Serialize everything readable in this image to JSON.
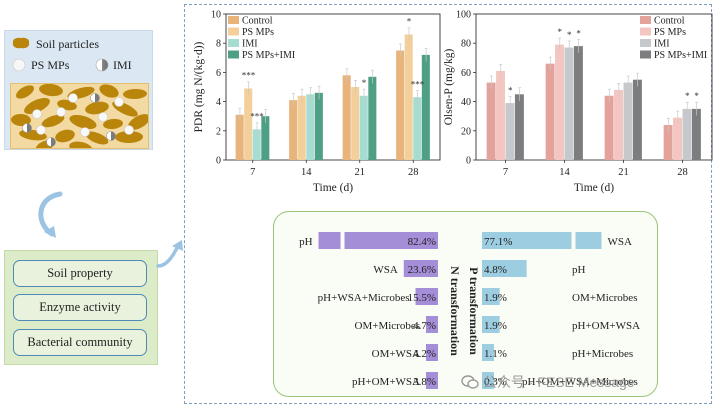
{
  "legend": {
    "soil_particles": "Soil particles",
    "ps_mps": "PS MPs",
    "imi": "IMI"
  },
  "factors": [
    "Soil property",
    "Enzyme activity",
    "Bacterial community"
  ],
  "colors": {
    "control_left": "#e8b47c",
    "ps_left": "#f3cf9c",
    "imi_left": "#a7ddd1",
    "psimi_left": "#4f9f86",
    "control_right": "#e3a29c",
    "ps_right": "#f3c6c1",
    "imi_right": "#c6c9cc",
    "psimi_right": "#7b7d7f",
    "n_bar": "#a58ed8",
    "p_bar": "#9dcde0"
  },
  "chart_data": [
    {
      "type": "bar",
      "ylabel": "PDR (mg N/(kg·d))",
      "xlabel": "Time (d)",
      "categories": [
        "7",
        "14",
        "21",
        "28"
      ],
      "ylim": [
        0,
        10
      ],
      "yticks": [
        "0",
        "2",
        "4",
        "6",
        "8",
        "10"
      ],
      "legend_position": "top-left",
      "series": [
        {
          "name": "Control",
          "values": [
            3.1,
            4.1,
            5.8,
            7.5
          ]
        },
        {
          "name": "PS MPs",
          "values": [
            4.9,
            4.4,
            5.0,
            8.6
          ]
        },
        {
          "name": "IMI",
          "values": [
            2.1,
            4.5,
            4.4,
            4.3
          ]
        },
        {
          "name": "PS MPs+IMI",
          "values": [
            3.0,
            4.6,
            5.7,
            7.2
          ]
        }
      ],
      "annotations": [
        {
          "category": "7",
          "series": "PS MPs",
          "text": "***"
        },
        {
          "category": "7",
          "series": "IMI",
          "text": "***"
        },
        {
          "category": "21",
          "series": "IMI",
          "text": "*"
        },
        {
          "category": "28",
          "series": "PS MPs",
          "text": "*"
        },
        {
          "category": "28",
          "series": "IMI",
          "text": "***"
        }
      ]
    },
    {
      "type": "bar",
      "ylabel": "Olsen-P (mg/kg)",
      "xlabel": "Time (d)",
      "categories": [
        "7",
        "14",
        "21",
        "28"
      ],
      "ylim": [
        0,
        100
      ],
      "yticks": [
        "0",
        "20",
        "40",
        "60",
        "80",
        "100"
      ],
      "legend_position": "top-right",
      "series": [
        {
          "name": "Control",
          "values": [
            53,
            66,
            44,
            24
          ]
        },
        {
          "name": "PS MPs",
          "values": [
            61,
            79,
            48,
            29
          ]
        },
        {
          "name": "IMI",
          "values": [
            39,
            77,
            53,
            35
          ]
        },
        {
          "name": "PS MPs+IMI",
          "values": [
            45,
            78,
            55,
            35
          ]
        }
      ],
      "annotations": [
        {
          "category": "7",
          "series": "IMI",
          "text": "*"
        },
        {
          "category": "14",
          "series": "PS MPs",
          "text": "*"
        },
        {
          "category": "14",
          "series": "IMI",
          "text": "*"
        },
        {
          "category": "14",
          "series": "PS MPs+IMI",
          "text": "*"
        },
        {
          "category": "28",
          "series": "IMI",
          "text": "*"
        },
        {
          "category": "28",
          "series": "PS MPs+IMI",
          "text": "*"
        }
      ]
    }
  ],
  "n_transformation": {
    "title": "N transformation",
    "items": [
      {
        "label": "pH",
        "value": 82.4,
        "display": "82.4%"
      },
      {
        "label": "WSA",
        "value": 23.6,
        "display": "23.6%"
      },
      {
        "label": "pH+WSA+Microbes",
        "value": 15.5,
        "display": "15.5%"
      },
      {
        "label": "OM+Microbes",
        "value": 4.7,
        "display": "4.7%"
      },
      {
        "label": "OM+WSA",
        "value": 4.2,
        "display": "4.2%"
      },
      {
        "label": "pH+OM+WSA",
        "value": 3.8,
        "display": "3.8%"
      }
    ]
  },
  "p_transformation": {
    "title": "P transformation",
    "items": [
      {
        "label": "WSA",
        "value": 77.1,
        "display": "77.1%"
      },
      {
        "label": "pH",
        "value": 4.8,
        "display": "4.8%"
      },
      {
        "label": "OM+Microbes",
        "value": 1.9,
        "display": "1.9%"
      },
      {
        "label": "pH+OM+WSA",
        "value": 1.9,
        "display": "1.9%"
      },
      {
        "label": "pH+Microbes",
        "value": 1.1,
        "display": "1.1%"
      },
      {
        "label": "pH+OM+WSA+Microbes",
        "value": 0.3,
        "display": "0.3%"
      }
    ]
  },
  "watermark": "公众号 · FESE Message"
}
